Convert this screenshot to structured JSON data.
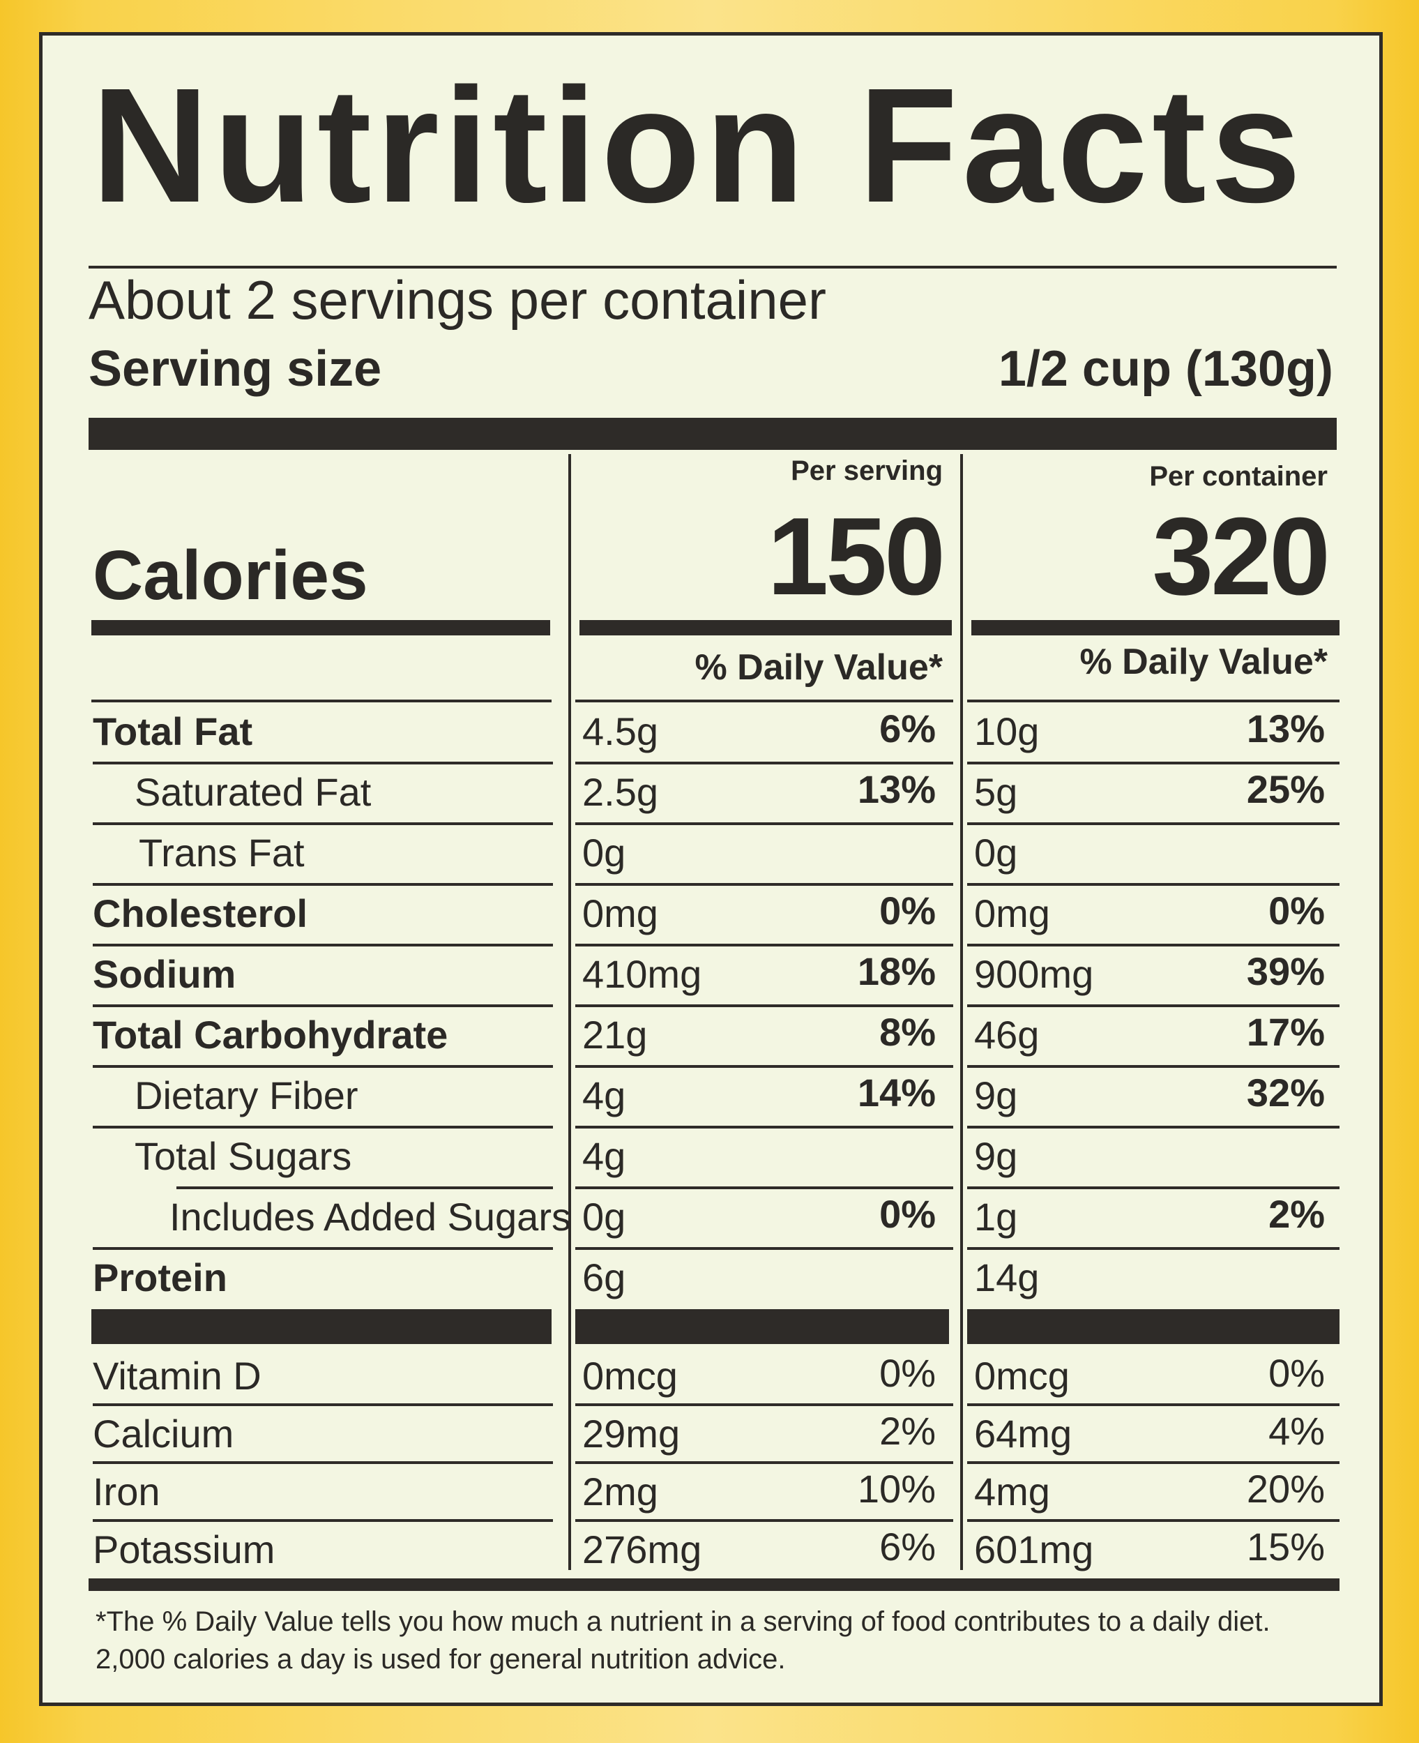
{
  "title": "Nutrition Facts",
  "servings_per_container": "About 2 servings per container",
  "serving_size_label": "Serving size",
  "serving_size_value": "1/2 cup (130g)",
  "columns": {
    "per_serving_label": "Per serving",
    "per_container_label": "Per container",
    "dv_label": "% Daily Value*"
  },
  "calories": {
    "label": "Calories",
    "per_serving": "150",
    "per_container": "320"
  },
  "nutrients": [
    {
      "label": "Total Fat",
      "serving": "4.5g",
      "serving_dv": "6%",
      "container": "10g",
      "container_dv": "13%"
    },
    {
      "label": "Saturated Fat",
      "serving": "2.5g",
      "serving_dv": "13%",
      "container": "5g",
      "container_dv": "25%"
    },
    {
      "label": "Trans Fat",
      "serving": "0g",
      "serving_dv": "",
      "container": "0g",
      "container_dv": ""
    },
    {
      "label": "Cholesterol",
      "serving": "0mg",
      "serving_dv": "0%",
      "container": "0mg",
      "container_dv": "0%"
    },
    {
      "label": "Sodium",
      "serving": "410mg",
      "serving_dv": "18%",
      "container": "900mg",
      "container_dv": "39%"
    },
    {
      "label": "Total Carbohydrate",
      "serving": "21g",
      "serving_dv": "8%",
      "container": "46g",
      "container_dv": "17%"
    },
    {
      "label": "Dietary Fiber",
      "serving": "4g",
      "serving_dv": "14%",
      "container": "9g",
      "container_dv": "32%"
    },
    {
      "label": "Total Sugars",
      "serving": "4g",
      "serving_dv": "",
      "container": "9g",
      "container_dv": ""
    },
    {
      "label": "Includes Added Sugars",
      "serving": "0g",
      "serving_dv": "0%",
      "container": "1g",
      "container_dv": "2%"
    },
    {
      "label": "Protein",
      "serving": "6g",
      "serving_dv": "",
      "container": "14g",
      "container_dv": ""
    }
  ],
  "vitamins": [
    {
      "label": "Vitamin D",
      "serving": "0mcg",
      "serving_dv": "0%",
      "container": "0mcg",
      "container_dv": "0%"
    },
    {
      "label": "Calcium",
      "serving": "29mg",
      "serving_dv": "2%",
      "container": "64mg",
      "container_dv": "4%"
    },
    {
      "label": "Iron",
      "serving": "2mg",
      "serving_dv": "10%",
      "container": "4mg",
      "container_dv": "20%"
    },
    {
      "label": "Potassium",
      "serving": "276mg",
      "serving_dv": "6%",
      "container": "601mg",
      "container_dv": "15%"
    }
  ],
  "footnote": {
    "line1": "*The % Daily Value tells you how much a nutrient in a serving of food contributes to a daily diet.",
    "line2": "2,000 calories a day is used for general nutrition advice."
  }
}
